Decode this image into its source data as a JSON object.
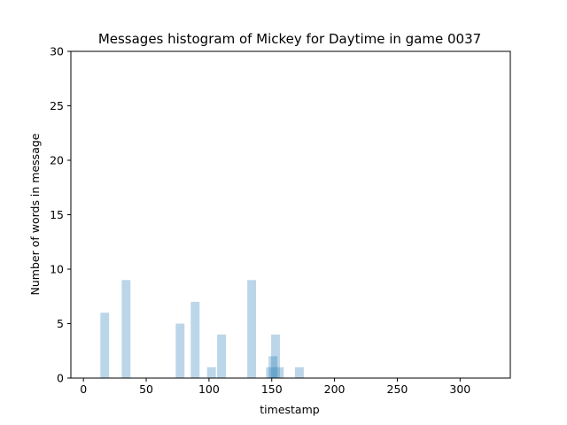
{
  "chart_data": {
    "type": "bar",
    "title": "Messages histogram of Mickey for Daytime in game 0037",
    "xlabel": "timestamp",
    "ylabel": "Number of words in message",
    "xlim": [
      -10,
      340
    ],
    "ylim": [
      0,
      30
    ],
    "xticks": [
      0,
      50,
      100,
      150,
      200,
      250,
      300
    ],
    "yticks": [
      0,
      5,
      10,
      15,
      20,
      25,
      30
    ],
    "bar_color": "#1f77b4",
    "bar_opacity": 0.3,
    "bar_width": 7,
    "grid": false,
    "bars": [
      {
        "x": 17,
        "value": 6
      },
      {
        "x": 34,
        "value": 9
      },
      {
        "x": 77,
        "value": 5
      },
      {
        "x": 89,
        "value": 7
      },
      {
        "x": 102,
        "value": 1
      },
      {
        "x": 110,
        "value": 4
      },
      {
        "x": 134,
        "value": 9
      },
      {
        "x": 149,
        "value": 1
      },
      {
        "x": 151,
        "value": 2
      },
      {
        "x": 153,
        "value": 4
      },
      {
        "x": 156,
        "value": 1
      },
      {
        "x": 172,
        "value": 1
      }
    ]
  }
}
